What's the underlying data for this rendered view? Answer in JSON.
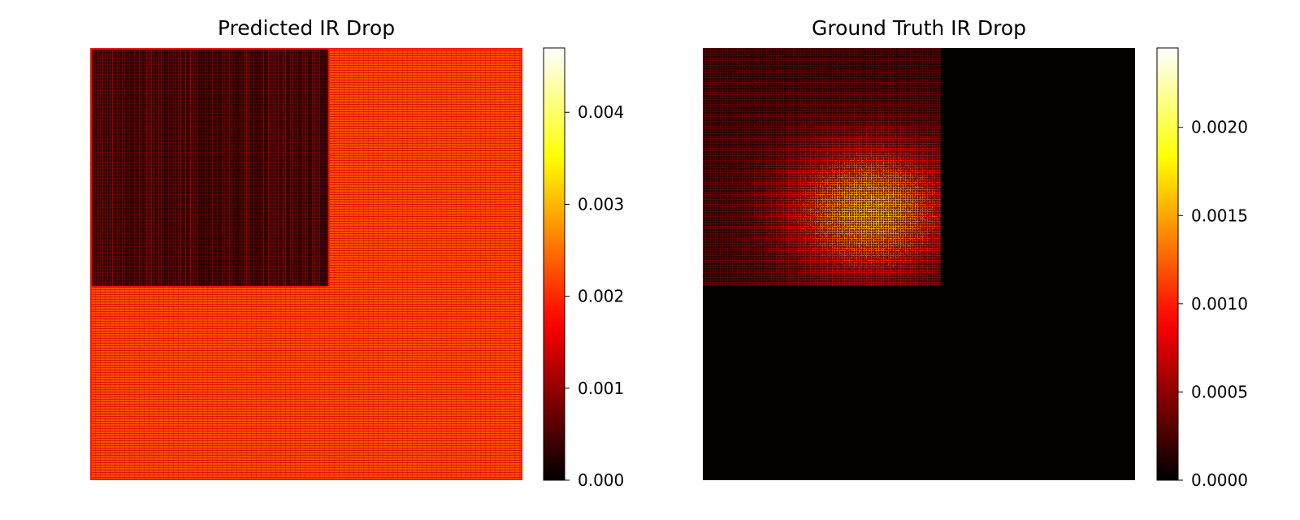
{
  "chart_data": [
    {
      "type": "heatmap",
      "title": "Predicted IR Drop",
      "xlabel": "",
      "ylabel": "",
      "axes_visible": false,
      "colormap": "hot",
      "colorbar": {
        "vmin": 0.0,
        "vmax": 0.0047,
        "ticks": [
          0.0,
          0.001,
          0.002,
          0.003,
          0.004
        ],
        "tick_labels": [
          "0.000",
          "0.001",
          "0.002",
          "0.003",
          "0.004"
        ]
      },
      "regions": [
        {
          "name": "top-left block",
          "rows": [
            0,
            0.55
          ],
          "cols": [
            0,
            0.55
          ],
          "value_mean": 0.0005,
          "value_max": 0.0011,
          "pattern": "dense vertical stripes"
        },
        {
          "name": "rest of grid",
          "rows": [
            0,
            1
          ],
          "cols": [
            0,
            1
          ],
          "value_mean": 0.0023,
          "value_max": 0.0025,
          "pattern": "fine horizontal grid lines"
        },
        {
          "name": "outer border",
          "value_mean": 0.0019
        }
      ]
    },
    {
      "type": "heatmap",
      "title": "Ground Truth IR Drop",
      "xlabel": "",
      "ylabel": "",
      "axes_visible": false,
      "colormap": "hot",
      "colorbar": {
        "vmin": 0.0,
        "vmax": 0.00245,
        "ticks": [
          0.0,
          0.0005,
          0.001,
          0.0015,
          0.002
        ],
        "tick_labels": [
          "0.0000",
          "0.0005",
          "0.0010",
          "0.0015",
          "0.0020"
        ]
      },
      "regions": [
        {
          "name": "top-left block",
          "rows": [
            0,
            0.55
          ],
          "cols": [
            0,
            0.55
          ],
          "value_range": [
            0.0,
            0.0018
          ],
          "peak_location": "center-right of block, lower half"
        },
        {
          "name": "rest of grid",
          "value_mean": 1e-05
        }
      ]
    }
  ]
}
